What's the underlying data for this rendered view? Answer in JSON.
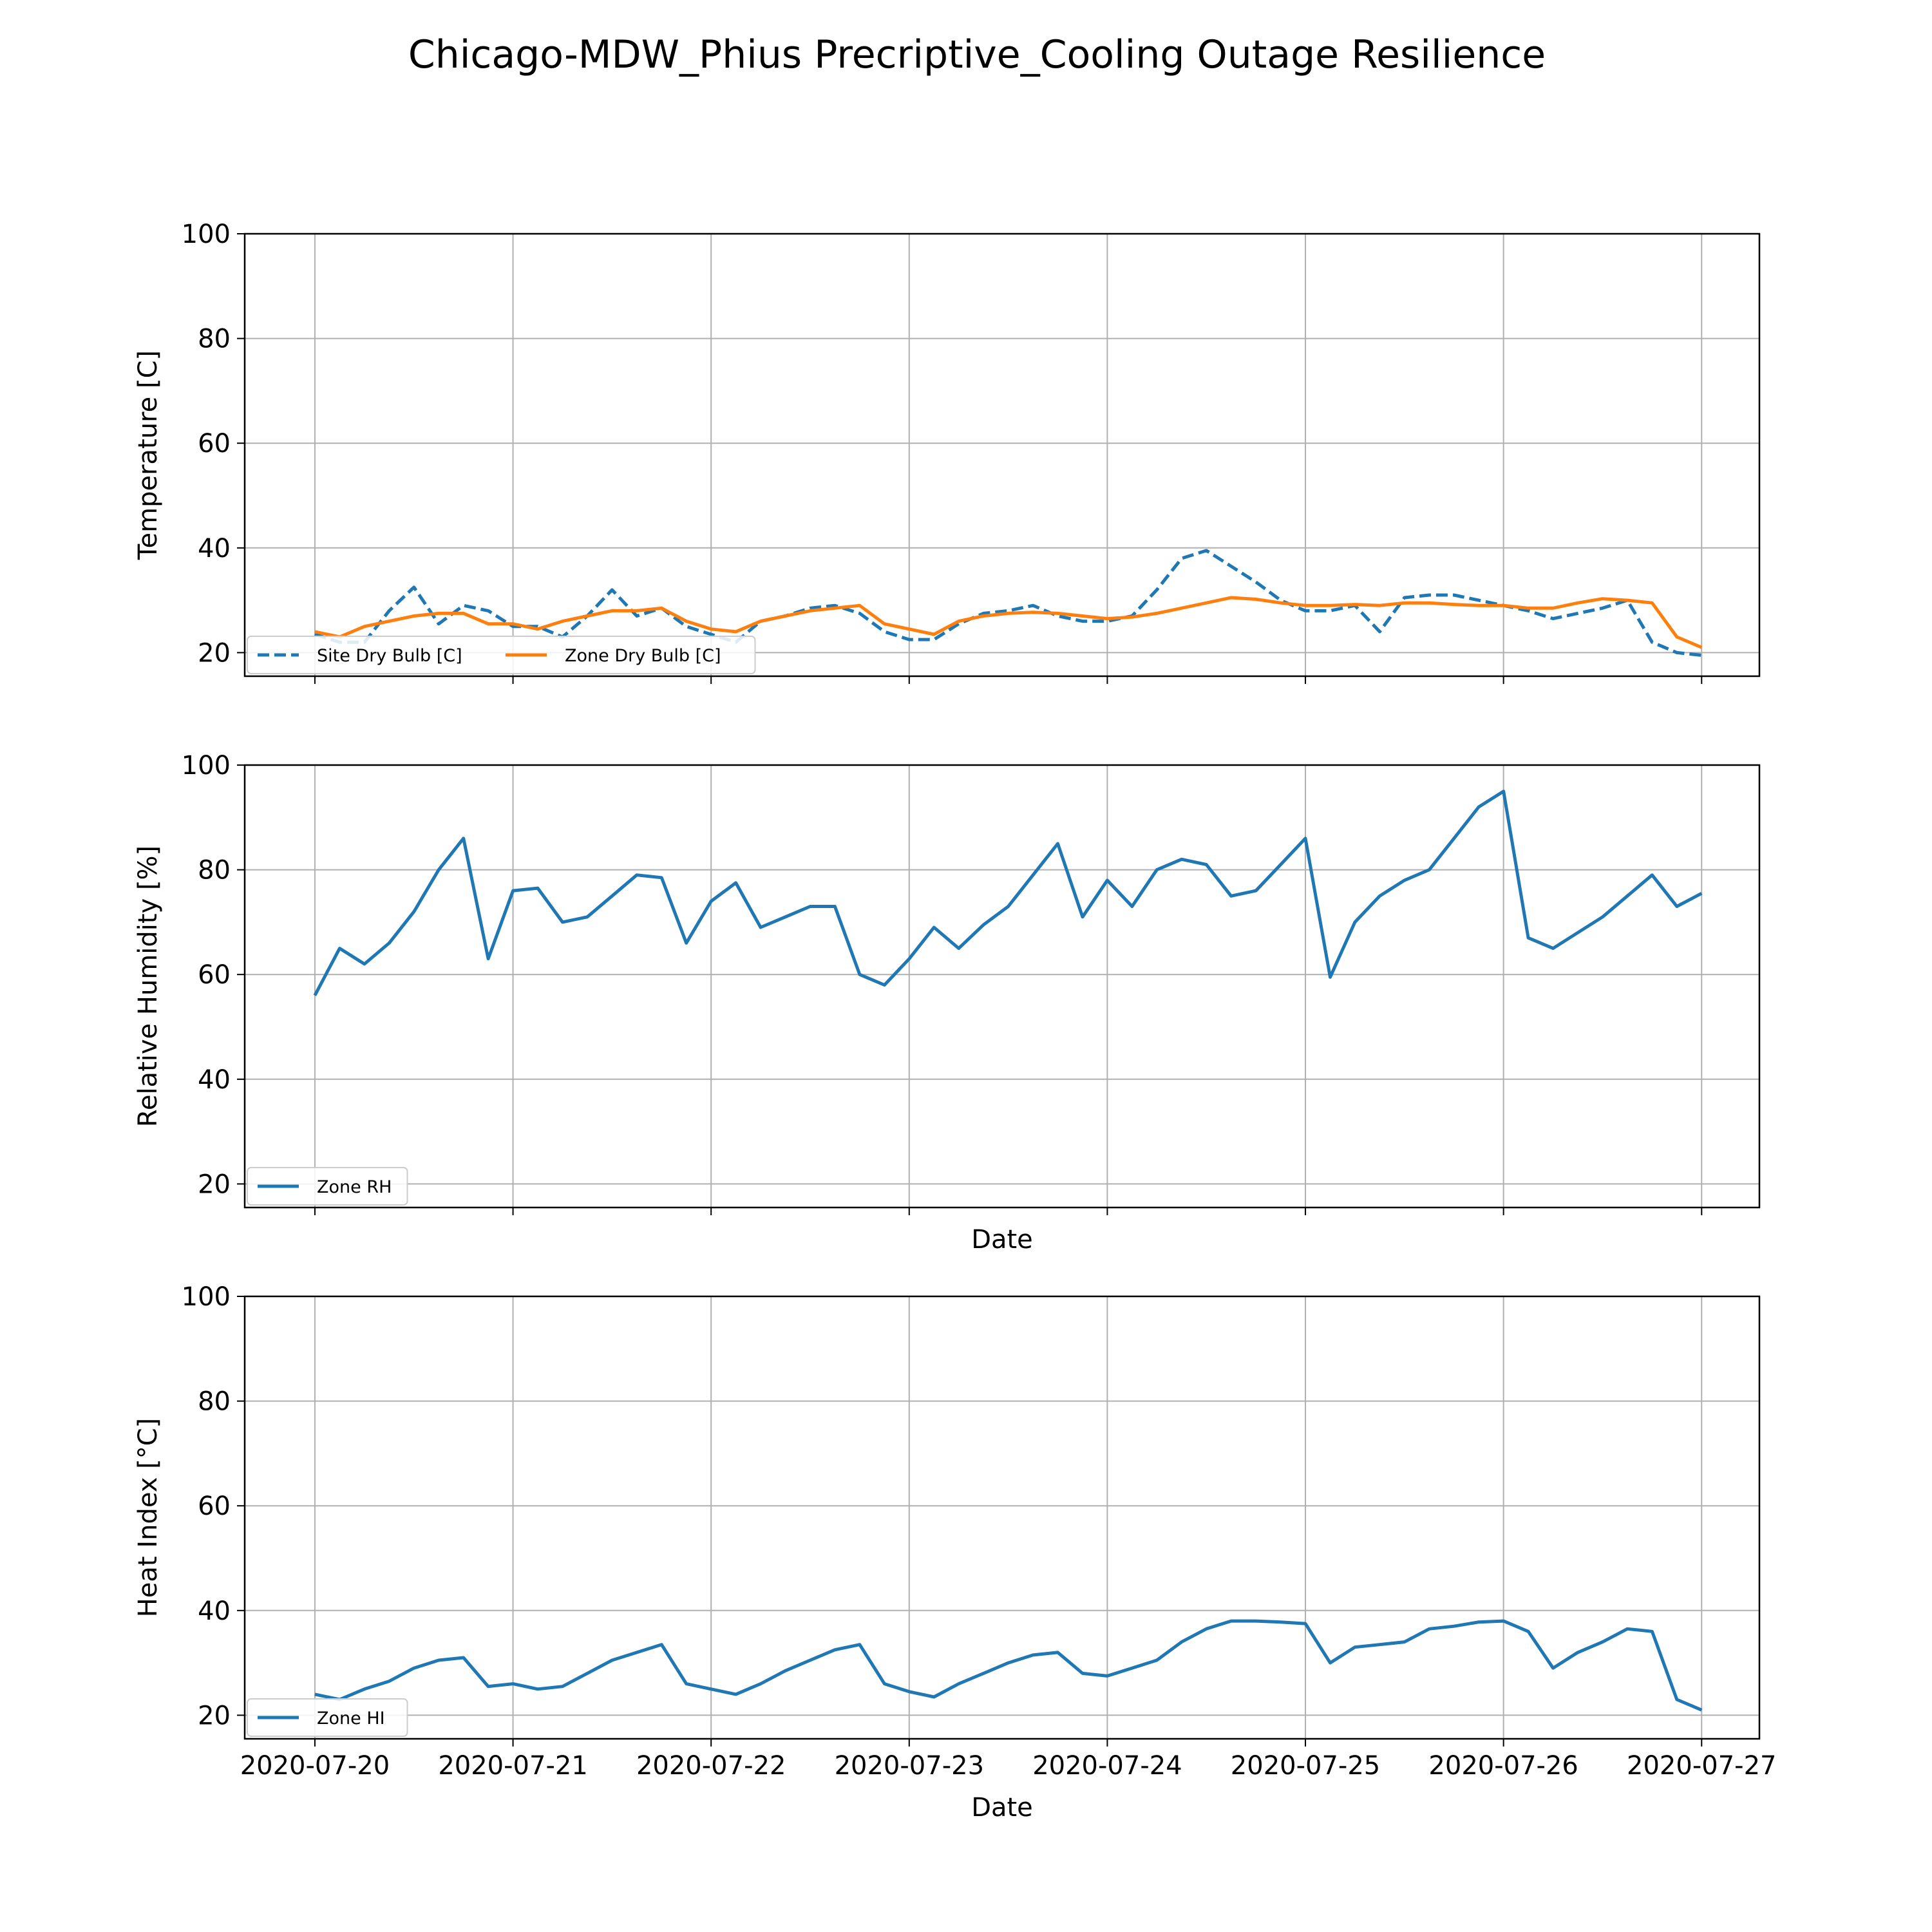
{
  "title": "Chicago-MDW_Phius Precriptive_Cooling Outage Resilience",
  "colors": {
    "blue": "#1f77b4",
    "orange": "#ff7f0e",
    "grid": "#b0b0b0"
  },
  "chart_data": [
    {
      "type": "line",
      "title": "",
      "xlabel": "",
      "ylabel": "Temperature [C]",
      "ylim": [
        15.5,
        100
      ],
      "yticks": [
        20,
        40,
        60,
        80,
        100
      ],
      "xlim": [
        "2020-07-19 15:30",
        "2020-07-27 07:00"
      ],
      "xticks": [
        "2020-07-20",
        "2020-07-21",
        "2020-07-22",
        "2020-07-23",
        "2020-07-24",
        "2020-07-25",
        "2020-07-26",
        "2020-07-27"
      ],
      "xticklabels_visible": false,
      "grid": true,
      "legend": "lower-left, 2 columns",
      "series": [
        {
          "name": "Site Dry Bulb [C]",
          "style": "dashed",
          "color": "#1f77b4",
          "x": [
            "2020-07-20 00:00",
            "2020-07-20 03:00",
            "2020-07-20 06:00",
            "2020-07-20 09:00",
            "2020-07-20 12:00",
            "2020-07-20 15:00",
            "2020-07-20 18:00",
            "2020-07-20 21:00",
            "2020-07-21 00:00",
            "2020-07-21 03:00",
            "2020-07-21 06:00",
            "2020-07-21 09:00",
            "2020-07-21 12:00",
            "2020-07-21 15:00",
            "2020-07-21 18:00",
            "2020-07-21 21:00",
            "2020-07-22 00:00",
            "2020-07-22 03:00",
            "2020-07-22 06:00",
            "2020-07-22 09:00",
            "2020-07-22 12:00",
            "2020-07-22 15:00",
            "2020-07-22 18:00",
            "2020-07-22 21:00",
            "2020-07-23 00:00",
            "2020-07-23 03:00",
            "2020-07-23 06:00",
            "2020-07-23 09:00",
            "2020-07-23 12:00",
            "2020-07-23 15:00",
            "2020-07-23 18:00",
            "2020-07-23 21:00",
            "2020-07-24 00:00",
            "2020-07-24 03:00",
            "2020-07-24 06:00",
            "2020-07-24 09:00",
            "2020-07-24 12:00",
            "2020-07-24 15:00",
            "2020-07-24 18:00",
            "2020-07-24 21:00",
            "2020-07-25 00:00",
            "2020-07-25 03:00",
            "2020-07-25 06:00",
            "2020-07-25 09:00",
            "2020-07-25 12:00",
            "2020-07-25 15:00",
            "2020-07-25 18:00",
            "2020-07-25 21:00",
            "2020-07-26 00:00",
            "2020-07-26 03:00",
            "2020-07-26 06:00",
            "2020-07-26 09:00",
            "2020-07-26 12:00",
            "2020-07-26 15:00",
            "2020-07-26 18:00",
            "2020-07-26 21:00",
            "2020-07-27 00:00"
          ],
          "y": [
            23.5,
            22,
            22,
            28,
            32.5,
            25.5,
            29,
            28,
            25,
            25,
            23,
            27,
            32,
            27,
            28.5,
            25,
            23.5,
            22,
            26,
            27,
            28.5,
            29,
            27.5,
            24,
            22.5,
            22.5,
            25.5,
            27.5,
            28,
            29,
            27,
            26,
            26,
            27,
            32,
            38,
            39.5,
            36.5,
            33.5,
            30,
            28,
            28,
            29,
            24,
            30.5,
            31,
            31,
            30,
            29,
            28,
            26.5,
            27.5,
            28.5,
            30,
            22,
            20,
            19.5
          ]
        },
        {
          "name": "Zone Dry Bulb [C]",
          "style": "solid",
          "color": "#ff7f0e",
          "x": [
            "2020-07-20 00:00",
            "2020-07-20 03:00",
            "2020-07-20 06:00",
            "2020-07-20 09:00",
            "2020-07-20 12:00",
            "2020-07-20 15:00",
            "2020-07-20 18:00",
            "2020-07-20 21:00",
            "2020-07-21 00:00",
            "2020-07-21 03:00",
            "2020-07-21 06:00",
            "2020-07-21 09:00",
            "2020-07-21 12:00",
            "2020-07-21 15:00",
            "2020-07-21 18:00",
            "2020-07-21 21:00",
            "2020-07-22 00:00",
            "2020-07-22 03:00",
            "2020-07-22 06:00",
            "2020-07-22 09:00",
            "2020-07-22 12:00",
            "2020-07-22 15:00",
            "2020-07-22 18:00",
            "2020-07-22 21:00",
            "2020-07-23 00:00",
            "2020-07-23 03:00",
            "2020-07-23 06:00",
            "2020-07-23 09:00",
            "2020-07-23 12:00",
            "2020-07-23 15:00",
            "2020-07-23 18:00",
            "2020-07-23 21:00",
            "2020-07-24 00:00",
            "2020-07-24 03:00",
            "2020-07-24 06:00",
            "2020-07-24 09:00",
            "2020-07-24 12:00",
            "2020-07-24 15:00",
            "2020-07-24 18:00",
            "2020-07-24 21:00",
            "2020-07-25 00:00",
            "2020-07-25 03:00",
            "2020-07-25 06:00",
            "2020-07-25 09:00",
            "2020-07-25 12:00",
            "2020-07-25 15:00",
            "2020-07-25 18:00",
            "2020-07-25 21:00",
            "2020-07-26 00:00",
            "2020-07-26 03:00",
            "2020-07-26 06:00",
            "2020-07-26 09:00",
            "2020-07-26 12:00",
            "2020-07-26 15:00",
            "2020-07-26 18:00",
            "2020-07-26 21:00",
            "2020-07-27 00:00"
          ],
          "y": [
            24,
            23,
            25,
            26,
            27,
            27.5,
            27.5,
            25.5,
            25.5,
            24.5,
            26,
            27,
            28,
            28,
            28.5,
            26,
            24.5,
            24,
            26,
            27,
            28,
            28.5,
            29,
            25.5,
            24.5,
            23.5,
            26,
            27,
            27.5,
            27.7,
            27.5,
            27,
            26.5,
            26.8,
            27.5,
            28.5,
            29.5,
            30.5,
            30.2,
            29.5,
            29,
            29,
            29.2,
            29,
            29.5,
            29.5,
            29.2,
            29,
            29,
            28.5,
            28.5,
            29.5,
            30.3,
            30,
            29.5,
            23,
            21
          ]
        }
      ]
    },
    {
      "type": "line",
      "title": "",
      "xlabel": "Date",
      "ylabel": "Relative Humidity [%]",
      "ylim": [
        15.5,
        100
      ],
      "yticks": [
        20,
        40,
        60,
        80,
        100
      ],
      "xlim": [
        "2020-07-19 15:30",
        "2020-07-27 07:00"
      ],
      "xticks": [
        "2020-07-20",
        "2020-07-21",
        "2020-07-22",
        "2020-07-23",
        "2020-07-24",
        "2020-07-25",
        "2020-07-26",
        "2020-07-27"
      ],
      "xticklabels_visible": false,
      "grid": true,
      "legend": "lower-left",
      "series": [
        {
          "name": "Zone RH",
          "style": "solid",
          "color": "#1f77b4",
          "x": [
            "2020-07-20 00:00",
            "2020-07-20 03:00",
            "2020-07-20 06:00",
            "2020-07-20 09:00",
            "2020-07-20 12:00",
            "2020-07-20 15:00",
            "2020-07-20 18:00",
            "2020-07-20 21:00",
            "2020-07-21 00:00",
            "2020-07-21 03:00",
            "2020-07-21 06:00",
            "2020-07-21 09:00",
            "2020-07-21 12:00",
            "2020-07-21 15:00",
            "2020-07-21 18:00",
            "2020-07-21 21:00",
            "2020-07-22 00:00",
            "2020-07-22 03:00",
            "2020-07-22 06:00",
            "2020-07-22 09:00",
            "2020-07-22 12:00",
            "2020-07-22 15:00",
            "2020-07-22 18:00",
            "2020-07-22 21:00",
            "2020-07-23 00:00",
            "2020-07-23 03:00",
            "2020-07-23 06:00",
            "2020-07-23 09:00",
            "2020-07-23 12:00",
            "2020-07-23 15:00",
            "2020-07-23 18:00",
            "2020-07-23 21:00",
            "2020-07-24 00:00",
            "2020-07-24 03:00",
            "2020-07-24 06:00",
            "2020-07-24 09:00",
            "2020-07-24 12:00",
            "2020-07-24 15:00",
            "2020-07-24 18:00",
            "2020-07-24 21:00",
            "2020-07-25 00:00",
            "2020-07-25 03:00",
            "2020-07-25 06:00",
            "2020-07-25 09:00",
            "2020-07-25 12:00",
            "2020-07-25 15:00",
            "2020-07-25 18:00",
            "2020-07-25 21:00",
            "2020-07-26 00:00",
            "2020-07-26 03:00",
            "2020-07-26 06:00",
            "2020-07-26 09:00",
            "2020-07-26 12:00",
            "2020-07-26 15:00",
            "2020-07-26 18:00",
            "2020-07-26 21:00",
            "2020-07-27 00:00"
          ],
          "y": [
            56,
            65,
            62,
            66,
            72,
            80,
            86,
            63,
            76,
            76.5,
            70,
            71,
            75,
            79,
            78.5,
            66,
            74,
            77.5,
            69,
            71,
            73,
            73,
            60,
            58,
            63,
            69,
            65,
            69.5,
            73,
            79,
            85,
            71,
            78,
            73,
            80,
            82,
            81,
            75,
            76,
            81,
            86,
            59.5,
            70,
            75,
            78,
            80,
            86,
            92,
            95,
            67,
            65,
            68,
            71,
            75,
            79,
            73,
            75.5
          ]
        }
      ]
    },
    {
      "type": "line",
      "title": "",
      "xlabel": "Date",
      "ylabel": "Heat Index [°C]",
      "ylim": [
        15.5,
        100
      ],
      "yticks": [
        20,
        40,
        60,
        80,
        100
      ],
      "xlim": [
        "2020-07-19 15:30",
        "2020-07-27 07:00"
      ],
      "xticks": [
        "2020-07-20",
        "2020-07-21",
        "2020-07-22",
        "2020-07-23",
        "2020-07-24",
        "2020-07-25",
        "2020-07-26",
        "2020-07-27"
      ],
      "xticklabels_visible": true,
      "grid": true,
      "legend": "lower-left",
      "series": [
        {
          "name": "Zone HI",
          "style": "solid",
          "color": "#1f77b4",
          "x": [
            "2020-07-20 00:00",
            "2020-07-20 03:00",
            "2020-07-20 06:00",
            "2020-07-20 09:00",
            "2020-07-20 12:00",
            "2020-07-20 15:00",
            "2020-07-20 18:00",
            "2020-07-20 21:00",
            "2020-07-21 00:00",
            "2020-07-21 03:00",
            "2020-07-21 06:00",
            "2020-07-21 09:00",
            "2020-07-21 12:00",
            "2020-07-21 15:00",
            "2020-07-21 18:00",
            "2020-07-21 21:00",
            "2020-07-22 00:00",
            "2020-07-22 03:00",
            "2020-07-22 06:00",
            "2020-07-22 09:00",
            "2020-07-22 12:00",
            "2020-07-22 15:00",
            "2020-07-22 18:00",
            "2020-07-22 21:00",
            "2020-07-23 00:00",
            "2020-07-23 03:00",
            "2020-07-23 06:00",
            "2020-07-23 09:00",
            "2020-07-23 12:00",
            "2020-07-23 15:00",
            "2020-07-23 18:00",
            "2020-07-23 21:00",
            "2020-07-24 00:00",
            "2020-07-24 03:00",
            "2020-07-24 06:00",
            "2020-07-24 09:00",
            "2020-07-24 12:00",
            "2020-07-24 15:00",
            "2020-07-24 18:00",
            "2020-07-24 21:00",
            "2020-07-25 00:00",
            "2020-07-25 03:00",
            "2020-07-25 06:00",
            "2020-07-25 09:00",
            "2020-07-25 12:00",
            "2020-07-25 15:00",
            "2020-07-25 18:00",
            "2020-07-25 21:00",
            "2020-07-26 00:00",
            "2020-07-26 03:00",
            "2020-07-26 06:00",
            "2020-07-26 09:00",
            "2020-07-26 12:00",
            "2020-07-26 15:00",
            "2020-07-26 18:00",
            "2020-07-26 21:00",
            "2020-07-27 00:00"
          ],
          "y": [
            24,
            23,
            25,
            26.5,
            29,
            30.5,
            31,
            25.5,
            26,
            25,
            25.5,
            28,
            30.5,
            32,
            33.5,
            26,
            25,
            24,
            26,
            28.5,
            30.5,
            32.5,
            33.5,
            26,
            24.5,
            23.5,
            26,
            28,
            30,
            31.5,
            32,
            28,
            27.5,
            29,
            30.5,
            34,
            36.5,
            38,
            38,
            37.8,
            37.5,
            30,
            33,
            33.5,
            34,
            36.5,
            37,
            37.8,
            38,
            36,
            29,
            32,
            34,
            36.5,
            36,
            23,
            21
          ]
        }
      ]
    }
  ]
}
